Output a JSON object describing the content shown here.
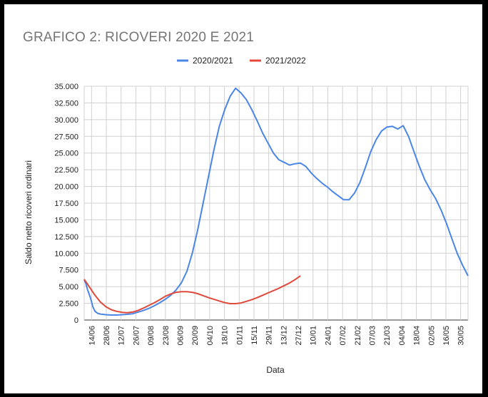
{
  "chart_data": {
    "type": "line",
    "title": "GRAFICO 2: RICOVERI 2020 E 2021",
    "xlabel": "Data",
    "ylabel": "Saldo netto ricoveri ordinari",
    "categories": [
      "14/06",
      "28/06",
      "12/07",
      "26/07",
      "09/08",
      "23/08",
      "06/09",
      "20/09",
      "04/10",
      "18/10",
      "01/11",
      "15/11",
      "29/11",
      "13/12",
      "27/12",
      "10/01",
      "24/01",
      "07/02",
      "21/02",
      "07/03",
      "21/03",
      "04/04",
      "18/04",
      "02/05",
      "16/05",
      "30/05"
    ],
    "y_ticks": [
      "0",
      "2.500",
      "5.000",
      "7.500",
      "10.000",
      "12.500",
      "15.000",
      "17.500",
      "20.000",
      "22.500",
      "25.000",
      "27.500",
      "30.000",
      "32.500",
      "35.000"
    ],
    "ylim": [
      0,
      35000
    ],
    "grid": true,
    "legend_position": "top",
    "series": [
      {
        "name": "2020/2021",
        "color": "#4a86e8",
        "points": [
          [
            0,
            6000
          ],
          [
            0.3,
            5500
          ],
          [
            0.6,
            4600
          ],
          [
            1,
            3700
          ],
          [
            1.3,
            2900
          ],
          [
            1.6,
            2000
          ],
          [
            2,
            1300
          ],
          [
            2.5,
            1000
          ],
          [
            3,
            900
          ],
          [
            4,
            800
          ],
          [
            5,
            750
          ],
          [
            6,
            750
          ],
          [
            7,
            800
          ],
          [
            8,
            850
          ],
          [
            9,
            950
          ],
          [
            10,
            1200
          ],
          [
            11,
            1450
          ],
          [
            12,
            1750
          ],
          [
            13,
            2150
          ],
          [
            14,
            2600
          ],
          [
            15,
            3100
          ],
          [
            16,
            3700
          ],
          [
            17,
            4500
          ],
          [
            18,
            5600
          ],
          [
            19,
            7300
          ],
          [
            20,
            10000
          ],
          [
            21,
            13500
          ],
          [
            22,
            17500
          ],
          [
            23,
            21500
          ],
          [
            24,
            25500
          ],
          [
            25,
            29000
          ],
          [
            26,
            31500
          ],
          [
            27,
            33500
          ],
          [
            28,
            34700
          ],
          [
            29,
            34000
          ],
          [
            30,
            33000
          ],
          [
            31,
            31500
          ],
          [
            32,
            29800
          ],
          [
            33,
            28000
          ],
          [
            34,
            26500
          ],
          [
            35,
            25000
          ],
          [
            36,
            24000
          ],
          [
            37,
            23600
          ],
          [
            38,
            23200
          ],
          [
            39,
            23400
          ],
          [
            40,
            23500
          ],
          [
            41,
            23000
          ],
          [
            42,
            22000
          ],
          [
            43,
            21200
          ],
          [
            44,
            20500
          ],
          [
            45,
            19900
          ],
          [
            46,
            19200
          ],
          [
            47,
            18600
          ],
          [
            48,
            18000
          ],
          [
            49,
            18000
          ],
          [
            50,
            19000
          ],
          [
            51,
            20600
          ],
          [
            52,
            22800
          ],
          [
            53,
            25200
          ],
          [
            54,
            27000
          ],
          [
            55,
            28300
          ],
          [
            56,
            28900
          ],
          [
            57,
            29000
          ],
          [
            58,
            28600
          ],
          [
            59,
            29100
          ],
          [
            60,
            27500
          ],
          [
            61,
            25200
          ],
          [
            62,
            23000
          ],
          [
            63,
            21000
          ],
          [
            64,
            19500
          ],
          [
            65,
            18200
          ],
          [
            66,
            16500
          ],
          [
            67,
            14500
          ],
          [
            68,
            12200
          ],
          [
            69,
            10000
          ],
          [
            70,
            8200
          ],
          [
            71,
            6600
          ]
        ]
      },
      {
        "name": "2021/2022",
        "color": "#e0483a",
        "points": [
          [
            0,
            6100
          ],
          [
            1,
            4900
          ],
          [
            2,
            3700
          ],
          [
            3,
            2700
          ],
          [
            4,
            2000
          ],
          [
            5,
            1550
          ],
          [
            6,
            1300
          ],
          [
            7,
            1150
          ],
          [
            8,
            1100
          ],
          [
            9,
            1200
          ],
          [
            10,
            1450
          ],
          [
            11,
            1800
          ],
          [
            12,
            2200
          ],
          [
            13,
            2600
          ],
          [
            14,
            3050
          ],
          [
            15,
            3550
          ],
          [
            16,
            3900
          ],
          [
            17,
            4150
          ],
          [
            18,
            4250
          ],
          [
            19,
            4250
          ],
          [
            20,
            4150
          ],
          [
            21,
            3950
          ],
          [
            22,
            3650
          ],
          [
            23,
            3350
          ],
          [
            24,
            3100
          ],
          [
            25,
            2850
          ],
          [
            26,
            2600
          ],
          [
            27,
            2450
          ],
          [
            28,
            2450
          ],
          [
            29,
            2550
          ],
          [
            30,
            2800
          ],
          [
            31,
            3050
          ],
          [
            32,
            3350
          ],
          [
            33,
            3700
          ],
          [
            34,
            4050
          ],
          [
            35,
            4400
          ],
          [
            36,
            4750
          ],
          [
            37,
            5150
          ],
          [
            38,
            5550
          ],
          [
            39,
            6050
          ],
          [
            40,
            6600
          ]
        ]
      }
    ]
  }
}
